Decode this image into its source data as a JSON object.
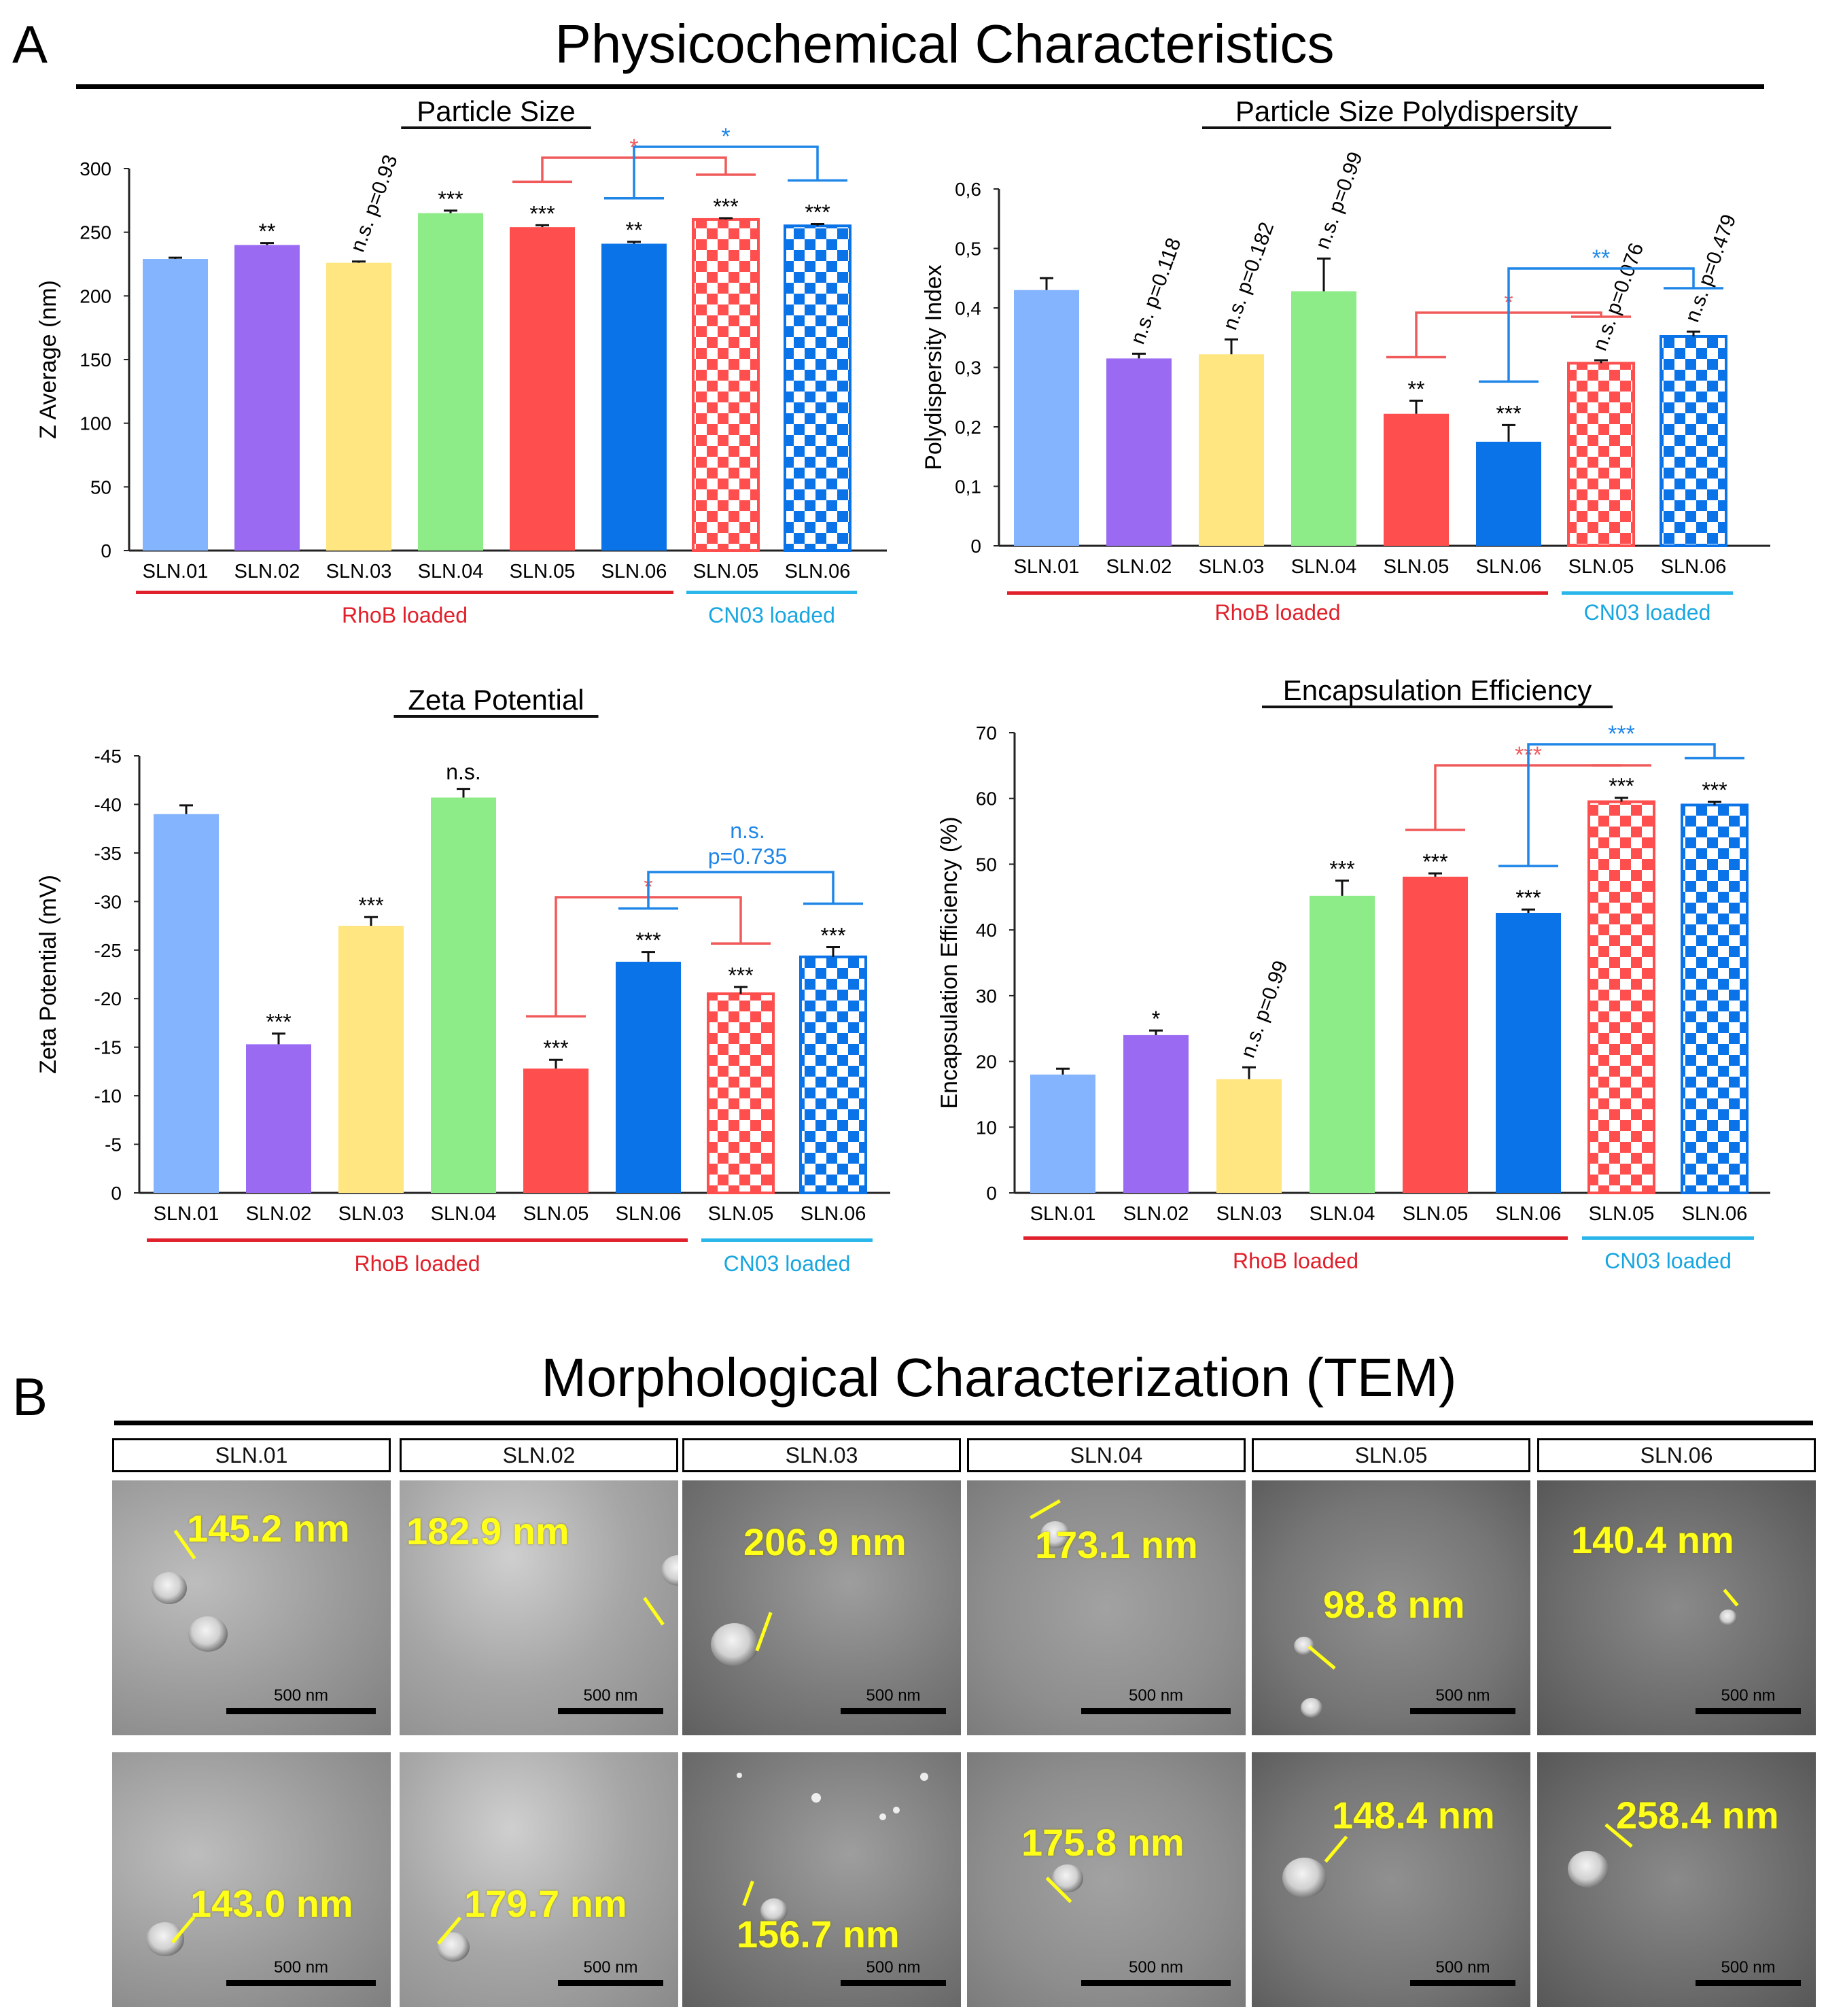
{
  "panel_labels": {
    "a": "A",
    "b": "B"
  },
  "section_a_title": "Physicochemical Characteristics",
  "section_b_title": "Morphological Characterization (TEM)",
  "colors": {
    "SLN.01": "#85b4ff",
    "SLN.02": "#9a6bf2",
    "SLN.03": "#ffe680",
    "SLN.04": "#8deb88",
    "SLN.05": "#ff4e4e",
    "SLN.06": "#0a73e8",
    "rhob_line": "#e0202a",
    "cn03_line": "#2ab6ea",
    "rhob_text": "#e0202a",
    "cn03_text": "#18a6e0",
    "bracket_red": "#f05a5a",
    "bracket_blue": "#1f86e8"
  },
  "chart_data": [
    {
      "id": "size",
      "type": "bar",
      "title": "Particle Size",
      "ylabel": "Z Average (nm)",
      "ylim": [
        0,
        300
      ],
      "yticks": [
        "0",
        "50",
        "100",
        "150",
        "200",
        "250",
        "300"
      ],
      "categories": [
        "SLN.01",
        "SLN.02",
        "SLN.03",
        "SLN.04",
        "SLN.05",
        "SLN.06",
        "SLN.05",
        "SLN.06"
      ],
      "values": [
        229,
        240,
        226,
        265,
        254,
        241,
        260,
        255
      ],
      "errors": [
        1,
        1.5,
        1,
        2,
        1.5,
        1.5,
        1,
        1.5
      ],
      "significance": [
        "",
        "**",
        "n.s. p=0.93",
        "***",
        "***",
        "**",
        "***",
        "***"
      ],
      "groups": [
        {
          "label": "RhoB loaded",
          "bars": [
            0,
            5
          ]
        },
        {
          "label": "CN03 loaded",
          "bars": [
            6,
            7
          ]
        }
      ],
      "comparisons": [
        {
          "from": 4,
          "to": 6,
          "label": "*",
          "color": "red"
        },
        {
          "from": 5,
          "to": 7,
          "label": "*",
          "color": "blue"
        }
      ]
    },
    {
      "id": "pdi",
      "type": "bar",
      "title": "Particle Size Polydispersity",
      "ylabel": "Polydispersity Index",
      "ylim": [
        0,
        0.6
      ],
      "yticks": [
        "0",
        "0,1",
        "0,2",
        "0,3",
        "0,4",
        "0,5",
        "0,6"
      ],
      "categories": [
        "SLN.01",
        "SLN.02",
        "SLN.03",
        "SLN.04",
        "SLN.05",
        "SLN.06",
        "SLN.05",
        "SLN.06"
      ],
      "values": [
        0.43,
        0.315,
        0.322,
        0.428,
        0.222,
        0.175,
        0.307,
        0.352
      ],
      "errors": [
        0.02,
        0.008,
        0.025,
        0.055,
        0.022,
        0.028,
        0.005,
        0.008
      ],
      "significance": [
        "",
        "n.s. p=0.118",
        "n.s. p=0.182",
        "n.s. p=0.99",
        "**",
        "***",
        "n.s. p=0.076",
        "n.s. p=0.479"
      ],
      "groups": [
        {
          "label": "RhoB loaded",
          "bars": [
            0,
            5
          ]
        },
        {
          "label": "CN03 loaded",
          "bars": [
            6,
            7
          ]
        }
      ],
      "comparisons": [
        {
          "from": 4,
          "to": 6,
          "label": "*",
          "color": "red"
        },
        {
          "from": 5,
          "to": 7,
          "label": "**",
          "color": "blue"
        }
      ]
    },
    {
      "id": "zeta",
      "type": "bar",
      "title": "Zeta Potential",
      "ylabel": "Zeta Potential (mV)",
      "ylim": [
        0,
        -45
      ],
      "yticks": [
        "0",
        "-5",
        "-10",
        "-15",
        "-20",
        "-25",
        "-30",
        "-35",
        "-40",
        "-45"
      ],
      "categories": [
        "SLN.01",
        "SLN.02",
        "SLN.03",
        "SLN.04",
        "SLN.05",
        "SLN.06",
        "SLN.05",
        "SLN.06"
      ],
      "values": [
        -39,
        -15.3,
        -27.5,
        -40.7,
        -12.8,
        -23.8,
        -20.5,
        -24.3
      ],
      "errors": [
        0.9,
        1.1,
        0.9,
        0.9,
        0.9,
        1.0,
        0.7,
        1.0
      ],
      "significance": [
        "",
        "***",
        "***",
        "n.s.",
        "***",
        "***",
        "***",
        "***"
      ],
      "groups": [
        {
          "label": "RhoB loaded",
          "bars": [
            0,
            5
          ]
        },
        {
          "label": "CN03 loaded",
          "bars": [
            6,
            7
          ]
        }
      ],
      "comparisons": [
        {
          "from": 4,
          "to": 6,
          "label": "*",
          "color": "red"
        },
        {
          "from": 5,
          "to": 7,
          "label": "n.s.",
          "label2": "p=0.735",
          "color": "blue"
        }
      ]
    },
    {
      "id": "ee",
      "type": "bar",
      "title": "Encapsulation Efficiency",
      "ylabel": "Encapsulation Efficiency (%)",
      "ylim": [
        0,
        70
      ],
      "yticks": [
        "0",
        "10",
        "20",
        "30",
        "40",
        "50",
        "60",
        "70"
      ],
      "categories": [
        "SLN.01",
        "SLN.02",
        "SLN.03",
        "SLN.04",
        "SLN.05",
        "SLN.06",
        "SLN.05",
        "SLN.06"
      ],
      "values": [
        18,
        24,
        17.3,
        45.2,
        48.1,
        42.6,
        59.5,
        59
      ],
      "errors": [
        0.9,
        0.7,
        1.8,
        2.3,
        0.5,
        0.5,
        0.6,
        0.5
      ],
      "significance": [
        "",
        "*",
        "n.s. p=0.99",
        "***",
        "***",
        "***",
        "***",
        "***"
      ],
      "groups": [
        {
          "label": "RhoB loaded",
          "bars": [
            0,
            5
          ]
        },
        {
          "label": "CN03 loaded",
          "bars": [
            6,
            7
          ]
        }
      ],
      "comparisons": [
        {
          "from": 4,
          "to": 6,
          "label": "***",
          "color": "red"
        },
        {
          "from": 5,
          "to": 7,
          "label": "***",
          "color": "blue"
        }
      ]
    }
  ],
  "tem": {
    "columns": [
      "SLN.01",
      "SLN.02",
      "SLN.03",
      "SLN.04",
      "SLN.05",
      "SLN.06"
    ],
    "scale_label": "500 nm",
    "row1": [
      "145.2 nm",
      "182.9 nm",
      "206.9 nm",
      "173.1 nm",
      "98.8 nm",
      "140.4 nm"
    ],
    "row2": [
      "143.0 nm",
      "179.7 nm",
      "156.7 nm",
      "175.8 nm",
      "148.4 nm",
      "258.4 nm"
    ]
  }
}
